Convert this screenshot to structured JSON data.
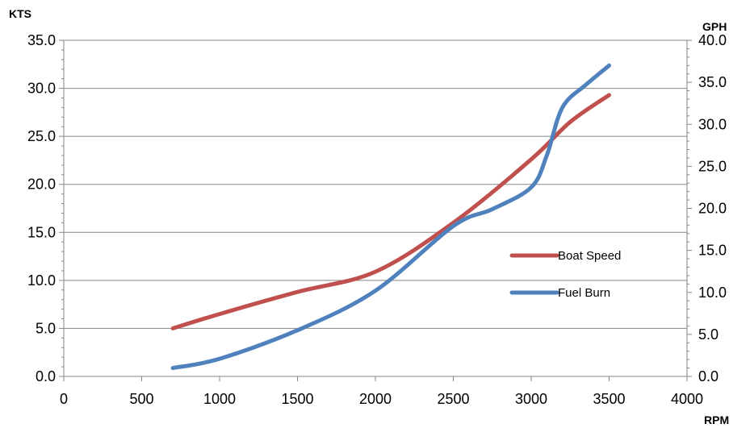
{
  "chart_data": {
    "type": "line",
    "title": "",
    "xlabel": "RPM",
    "ylabel": "KTS",
    "y2label": "GPH",
    "xlim": [
      0,
      4000
    ],
    "ylim": [
      0,
      35
    ],
    "y2lim": [
      0,
      40
    ],
    "x_ticks": [
      "0",
      "500",
      "1000",
      "1500",
      "2000",
      "2500",
      "3000",
      "3500",
      "4000"
    ],
    "y_ticks": [
      "0.0",
      "5.0",
      "10.0",
      "15.0",
      "20.0",
      "25.0",
      "30.0",
      "35.0"
    ],
    "y2_ticks": [
      "0.0",
      "5.0",
      "10.0",
      "15.0",
      "20.0",
      "25.0",
      "30.0",
      "35.0",
      "40.0"
    ],
    "grid": true,
    "legend_position": "right",
    "series": [
      {
        "name": "Boat Speed",
        "axis": "left",
        "color": "#c0504d",
        "x": [
          700,
          1000,
          1500,
          2000,
          2500,
          3000,
          3250,
          3500
        ],
        "y": [
          5.0,
          6.5,
          8.8,
          10.9,
          16.0,
          22.6,
          26.5,
          29.3
        ]
      },
      {
        "name": "Fuel Burn",
        "axis": "right",
        "color": "#4f81bd",
        "x": [
          700,
          1000,
          1500,
          2000,
          2500,
          2750,
          3000,
          3100,
          3200,
          3350,
          3500
        ],
        "y": [
          1.0,
          2.1,
          5.5,
          10.2,
          17.9,
          19.9,
          22.5,
          26.3,
          32.0,
          34.7,
          37.0
        ]
      }
    ]
  }
}
